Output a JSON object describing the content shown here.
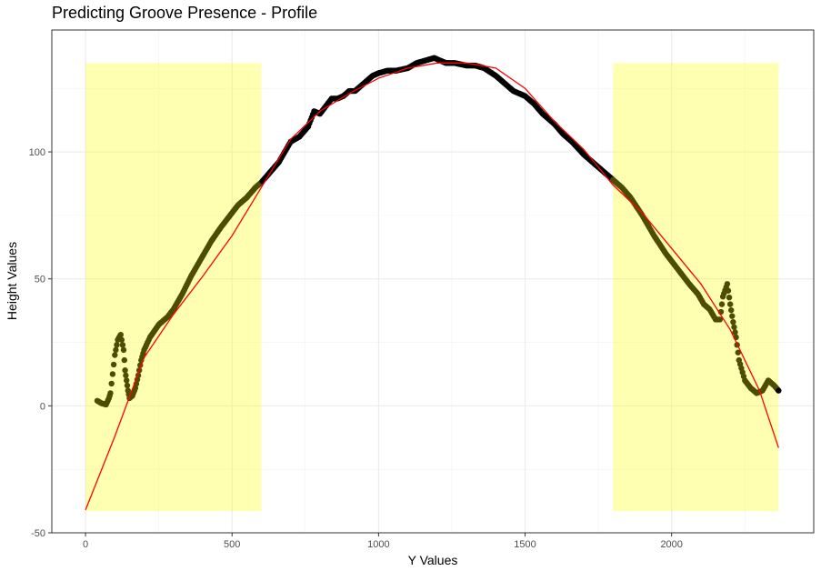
{
  "chart_data": {
    "type": "scatter",
    "title": "Predicting Groove Presence - Profile",
    "xlabel": "Y Values",
    "ylabel": "Height Values",
    "xlim": [
      -115,
      2485
    ],
    "ylim": [
      -50,
      148
    ],
    "x_ticks": [
      0,
      500,
      1000,
      1500,
      2000
    ],
    "x_tick_labels": [
      "0",
      "500",
      "1000",
      "1500",
      "2000"
    ],
    "y_ticks": [
      -50,
      0,
      50,
      100
    ],
    "y_tick_labels": [
      "-50",
      "0",
      "50",
      "100"
    ],
    "grid": true,
    "groove_regions": [
      {
        "x_start": 0,
        "x_end": 600,
        "y_bottom": -41.5,
        "y_top": 135
      },
      {
        "x_start": 1800,
        "x_end": 2365,
        "y_bottom": -41.5,
        "y_top": 135
      }
    ],
    "fitted_curve": {
      "color": "#ff0000",
      "x": [
        0,
        100,
        200,
        300,
        400,
        500,
        600,
        700,
        800,
        900,
        1000,
        1100,
        1200,
        1300,
        1400,
        1500,
        1600,
        1700,
        1800,
        1900,
        2000,
        2100,
        2200,
        2300,
        2365
      ],
      "y": [
        -41,
        -12,
        19,
        36,
        51,
        67,
        86,
        105,
        116,
        123,
        129,
        133,
        135,
        135,
        133,
        125,
        112,
        101,
        87,
        76,
        62,
        48,
        30,
        6,
        -16.5
      ]
    },
    "profile_points": {
      "color_outside_groove": "#000000",
      "color_in_groove": "#4d4d00",
      "x": [
        40,
        55,
        70,
        80,
        85,
        100,
        110,
        120,
        130,
        135,
        140,
        145,
        150,
        160,
        170,
        180,
        190,
        200,
        220,
        250,
        280,
        300,
        330,
        360,
        400,
        430,
        460,
        500,
        520,
        550,
        580,
        600,
        630,
        660,
        680,
        700,
        730,
        760,
        780,
        800,
        820,
        840,
        860,
        880,
        900,
        920,
        950,
        980,
        1000,
        1030,
        1060,
        1100,
        1130,
        1160,
        1190,
        1210,
        1230,
        1260,
        1300,
        1330,
        1360,
        1400,
        1430,
        1460,
        1500,
        1530,
        1560,
        1600,
        1630,
        1660,
        1700,
        1730,
        1760,
        1780,
        1800,
        1830,
        1860,
        1900,
        1940,
        1980,
        2020,
        2060,
        2090,
        2110,
        2130,
        2150,
        2165,
        2175,
        2190,
        2200,
        2210,
        2220,
        2230,
        2250,
        2270,
        2290,
        2310,
        2330,
        2350,
        2365
      ],
      "y": [
        2,
        1,
        0.5,
        3,
        5,
        20,
        26,
        28,
        22,
        14,
        10,
        6,
        3,
        4,
        7,
        12,
        18,
        22,
        27,
        32,
        35,
        38,
        44,
        51,
        59,
        65,
        70,
        76,
        79,
        82,
        86,
        88,
        92,
        96,
        100,
        104,
        106,
        110,
        116,
        115,
        118,
        121,
        121,
        122,
        124,
        124,
        127,
        130,
        131,
        132,
        132,
        133,
        135,
        136,
        137,
        136,
        135,
        135,
        134,
        134,
        133,
        130,
        127,
        124,
        122,
        119,
        115,
        111,
        107,
        104,
        99,
        96,
        93,
        91,
        89,
        86,
        82,
        75,
        67,
        60,
        54,
        48,
        44,
        40,
        38,
        34,
        34,
        43,
        48,
        40,
        33,
        27,
        18,
        10,
        7,
        5,
        6,
        10,
        8,
        6
      ]
    }
  }
}
